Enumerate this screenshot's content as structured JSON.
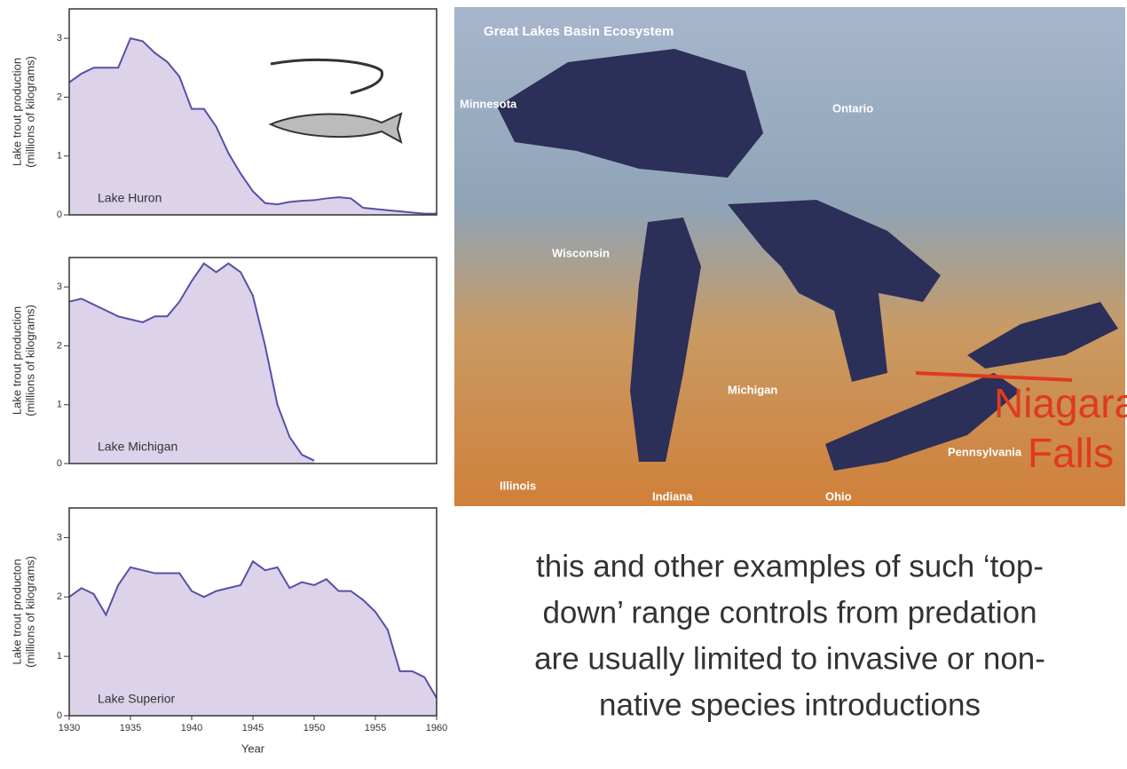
{
  "chart_data": [
    {
      "type": "area",
      "ylabel": [
        "Lake trout production",
        "(millions of kilograms)"
      ],
      "annotation": "Lake Huron",
      "x": [
        1930,
        1931,
        1932,
        1933,
        1934,
        1935,
        1936,
        1937,
        1938,
        1939,
        1940,
        1941,
        1942,
        1943,
        1944,
        1945,
        1946,
        1947,
        1948,
        1949,
        1950,
        1951,
        1952,
        1953,
        1954,
        1955,
        1956,
        1957,
        1958,
        1959,
        1960
      ],
      "values": [
        2.25,
        2.4,
        2.5,
        2.5,
        2.5,
        3.0,
        2.95,
        2.75,
        2.6,
        2.35,
        1.8,
        1.8,
        1.5,
        1.05,
        0.7,
        0.4,
        0.2,
        0.18,
        0.22,
        0.24,
        0.25,
        0.28,
        0.3,
        0.28,
        0.12,
        0.1,
        0.08,
        0.06,
        0.04,
        0.02,
        0.02
      ],
      "color": "#5b4ea6",
      "fill": "#dcd3ea",
      "xlim": [
        1930,
        1960
      ],
      "ylim": [
        0,
        3.5
      ],
      "yticks": [
        0,
        1,
        2,
        3
      ]
    },
    {
      "type": "area",
      "ylabel": [
        "Lake trout production",
        "(millions of kilograms)"
      ],
      "annotation": "Lake Michigan",
      "x": [
        1930,
        1931,
        1932,
        1933,
        1934,
        1935,
        1936,
        1937,
        1938,
        1939,
        1940,
        1941,
        1942,
        1943,
        1944,
        1945,
        1946,
        1947,
        1948,
        1949,
        1950
      ],
      "values": [
        2.75,
        2.8,
        2.7,
        2.6,
        2.5,
        2.45,
        2.4,
        2.5,
        2.5,
        2.75,
        3.1,
        3.4,
        3.25,
        3.4,
        3.25,
        2.85,
        2.0,
        1.0,
        0.45,
        0.15,
        0.05
      ],
      "color": "#5b4ea6",
      "fill": "#dcd3ea",
      "xlim": [
        1930,
        1960
      ],
      "ylim": [
        0,
        3.5
      ],
      "yticks": [
        0,
        1,
        2,
        3
      ]
    },
    {
      "type": "area",
      "ylabel": [
        "Lake trout producton",
        "(millions of kilograms)"
      ],
      "annotation": "Lake Superior",
      "xlabel": "Year",
      "x": [
        1930,
        1931,
        1932,
        1933,
        1934,
        1935,
        1936,
        1937,
        1938,
        1939,
        1940,
        1941,
        1942,
        1943,
        1944,
        1945,
        1946,
        1947,
        1948,
        1949,
        1950,
        1951,
        1952,
        1953,
        1954,
        1955,
        1956,
        1957,
        1958,
        1959,
        1960
      ],
      "values": [
        2.0,
        2.15,
        2.05,
        1.7,
        2.2,
        2.5,
        2.45,
        2.4,
        2.4,
        2.4,
        2.1,
        2.0,
        2.1,
        2.15,
        2.2,
        2.6,
        2.45,
        2.5,
        2.15,
        2.25,
        2.2,
        2.3,
        2.1,
        2.1,
        1.95,
        1.75,
        1.45,
        0.75,
        0.75,
        0.65,
        0.3
      ],
      "color": "#5b4ea6",
      "fill": "#dcd3ea",
      "xlim": [
        1930,
        1960
      ],
      "ylim": [
        0,
        3.5
      ],
      "yticks": [
        0,
        1,
        2,
        3
      ],
      "xticks": [
        1930,
        1935,
        1940,
        1945,
        1950,
        1955,
        1960
      ]
    }
  ],
  "map": {
    "title": "Great Lakes Basin Ecosystem",
    "labels": [
      "Minnesota",
      "Ontario",
      "Wisconsin",
      "Michigan",
      "Illinois",
      "Indiana",
      "Ohio",
      "Pennsylvania"
    ],
    "callout": [
      "Niagara",
      "Falls"
    ]
  },
  "caption": [
    "this and other examples of such ‘top-",
    "down’ range controls from predation",
    "are usually limited to invasive or non-",
    "native species introductions"
  ]
}
